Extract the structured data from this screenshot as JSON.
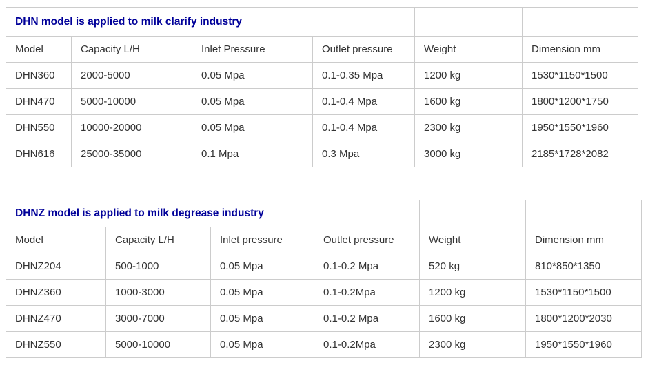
{
  "colors": {
    "title_text": "#000099",
    "body_text": "#333333",
    "grid_border": "#cccccc",
    "background": "#ffffff"
  },
  "tables": [
    {
      "title": "DHN model is applied to milk clarify industry",
      "headers": [
        "Model",
        "Capacity L/H",
        "Inlet Pressure",
        "Outlet pressure",
        "Weight",
        "Dimension mm"
      ],
      "rows": [
        [
          "DHN360",
          "2000-5000",
          "0.05 Mpa",
          "0.1-0.35 Mpa",
          "1200 kg",
          "1530*1150*1500"
        ],
        [
          "DHN470",
          "5000-10000",
          "0.05 Mpa",
          "0.1-0.4 Mpa",
          "1600 kg",
          "1800*1200*1750"
        ],
        [
          "DHN550",
          "10000-20000",
          "0.05 Mpa",
          "0.1-0.4 Mpa",
          "2300 kg",
          "1950*1550*1960"
        ],
        [
          "DHN616",
          "25000-35000",
          "0.1 Mpa",
          "0.3 Mpa",
          "3000 kg",
          "2185*1728*2082"
        ]
      ]
    },
    {
      "title": "DHNZ model is applied to milk degrease industry",
      "headers": [
        "Model",
        "Capacity L/H",
        "Inlet pressure",
        "Outlet pressure",
        "Weight",
        "Dimension mm"
      ],
      "rows": [
        [
          "DHNZ204",
          "500-1000",
          "0.05 Mpa",
          "0.1-0.2 Mpa",
          "520 kg",
          "810*850*1350"
        ],
        [
          "DHNZ360",
          "1000-3000",
          "0.05 Mpa",
          "0.1-0.2Mpa",
          "1200 kg",
          "1530*1150*1500"
        ],
        [
          "DHNZ470",
          "3000-7000",
          "0.05 Mpa",
          "0.1-0.2 Mpa",
          "1600 kg",
          "1800*1200*2030"
        ],
        [
          "DHNZ550",
          "5000-10000",
          "0.05 Mpa",
          "0.1-0.2Mpa",
          "2300 kg",
          "1950*1550*1960"
        ]
      ]
    }
  ]
}
